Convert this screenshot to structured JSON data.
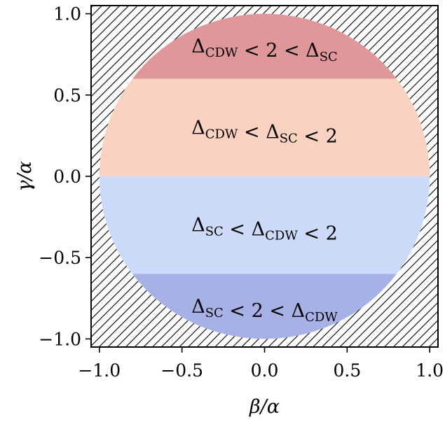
{
  "chart_data": {
    "type": "area",
    "shape": "unit-disk",
    "xlabel": "β/α",
    "ylabel": "γ/α",
    "xlim": [
      -1.05,
      1.05
    ],
    "ylim": [
      -1.05,
      1.05
    ],
    "xticks": [
      -1.0,
      -0.5,
      0.0,
      0.5,
      1.0
    ],
    "yticks": [
      -1.0,
      -0.5,
      0.0,
      0.5,
      1.0
    ],
    "xtick_labels": [
      "−1.0",
      "−0.5",
      "0.0",
      "0.5",
      "1.0"
    ],
    "ytick_labels": [
      "−1.0",
      "−0.5",
      "0.0",
      "0.5",
      "1.0"
    ],
    "outside_region": "hatched",
    "regions": [
      {
        "y_range": [
          0.6,
          1.0
        ],
        "color": "#e0979a",
        "label_y": 0.8,
        "label": [
          {
            "t": "Δ"
          },
          {
            "s": "CDW"
          },
          {
            "t": " < 2 < Δ"
          },
          {
            "s": "SC"
          }
        ]
      },
      {
        "y_range": [
          0.0,
          0.6
        ],
        "color": "#f9d2c2",
        "label_y": 0.3,
        "label": [
          {
            "t": "Δ"
          },
          {
            "s": "CDW"
          },
          {
            "t": " < Δ"
          },
          {
            "s": "SC"
          },
          {
            "t": " < 2"
          }
        ]
      },
      {
        "y_range": [
          -0.6,
          0.0
        ],
        "color": "#cddbfb",
        "label_y": -0.3,
        "label": [
          {
            "t": "Δ"
          },
          {
            "s": "SC"
          },
          {
            "t": " < Δ"
          },
          {
            "s": "CDW"
          },
          {
            "t": " < 2"
          }
        ]
      },
      {
        "y_range": [
          -1.0,
          -0.6
        ],
        "color": "#a6b2e6",
        "label_y": -0.8,
        "label": [
          {
            "t": "Δ"
          },
          {
            "s": "SC"
          },
          {
            "t": " < 2 < Δ"
          },
          {
            "s": "CDW"
          }
        ]
      }
    ]
  }
}
